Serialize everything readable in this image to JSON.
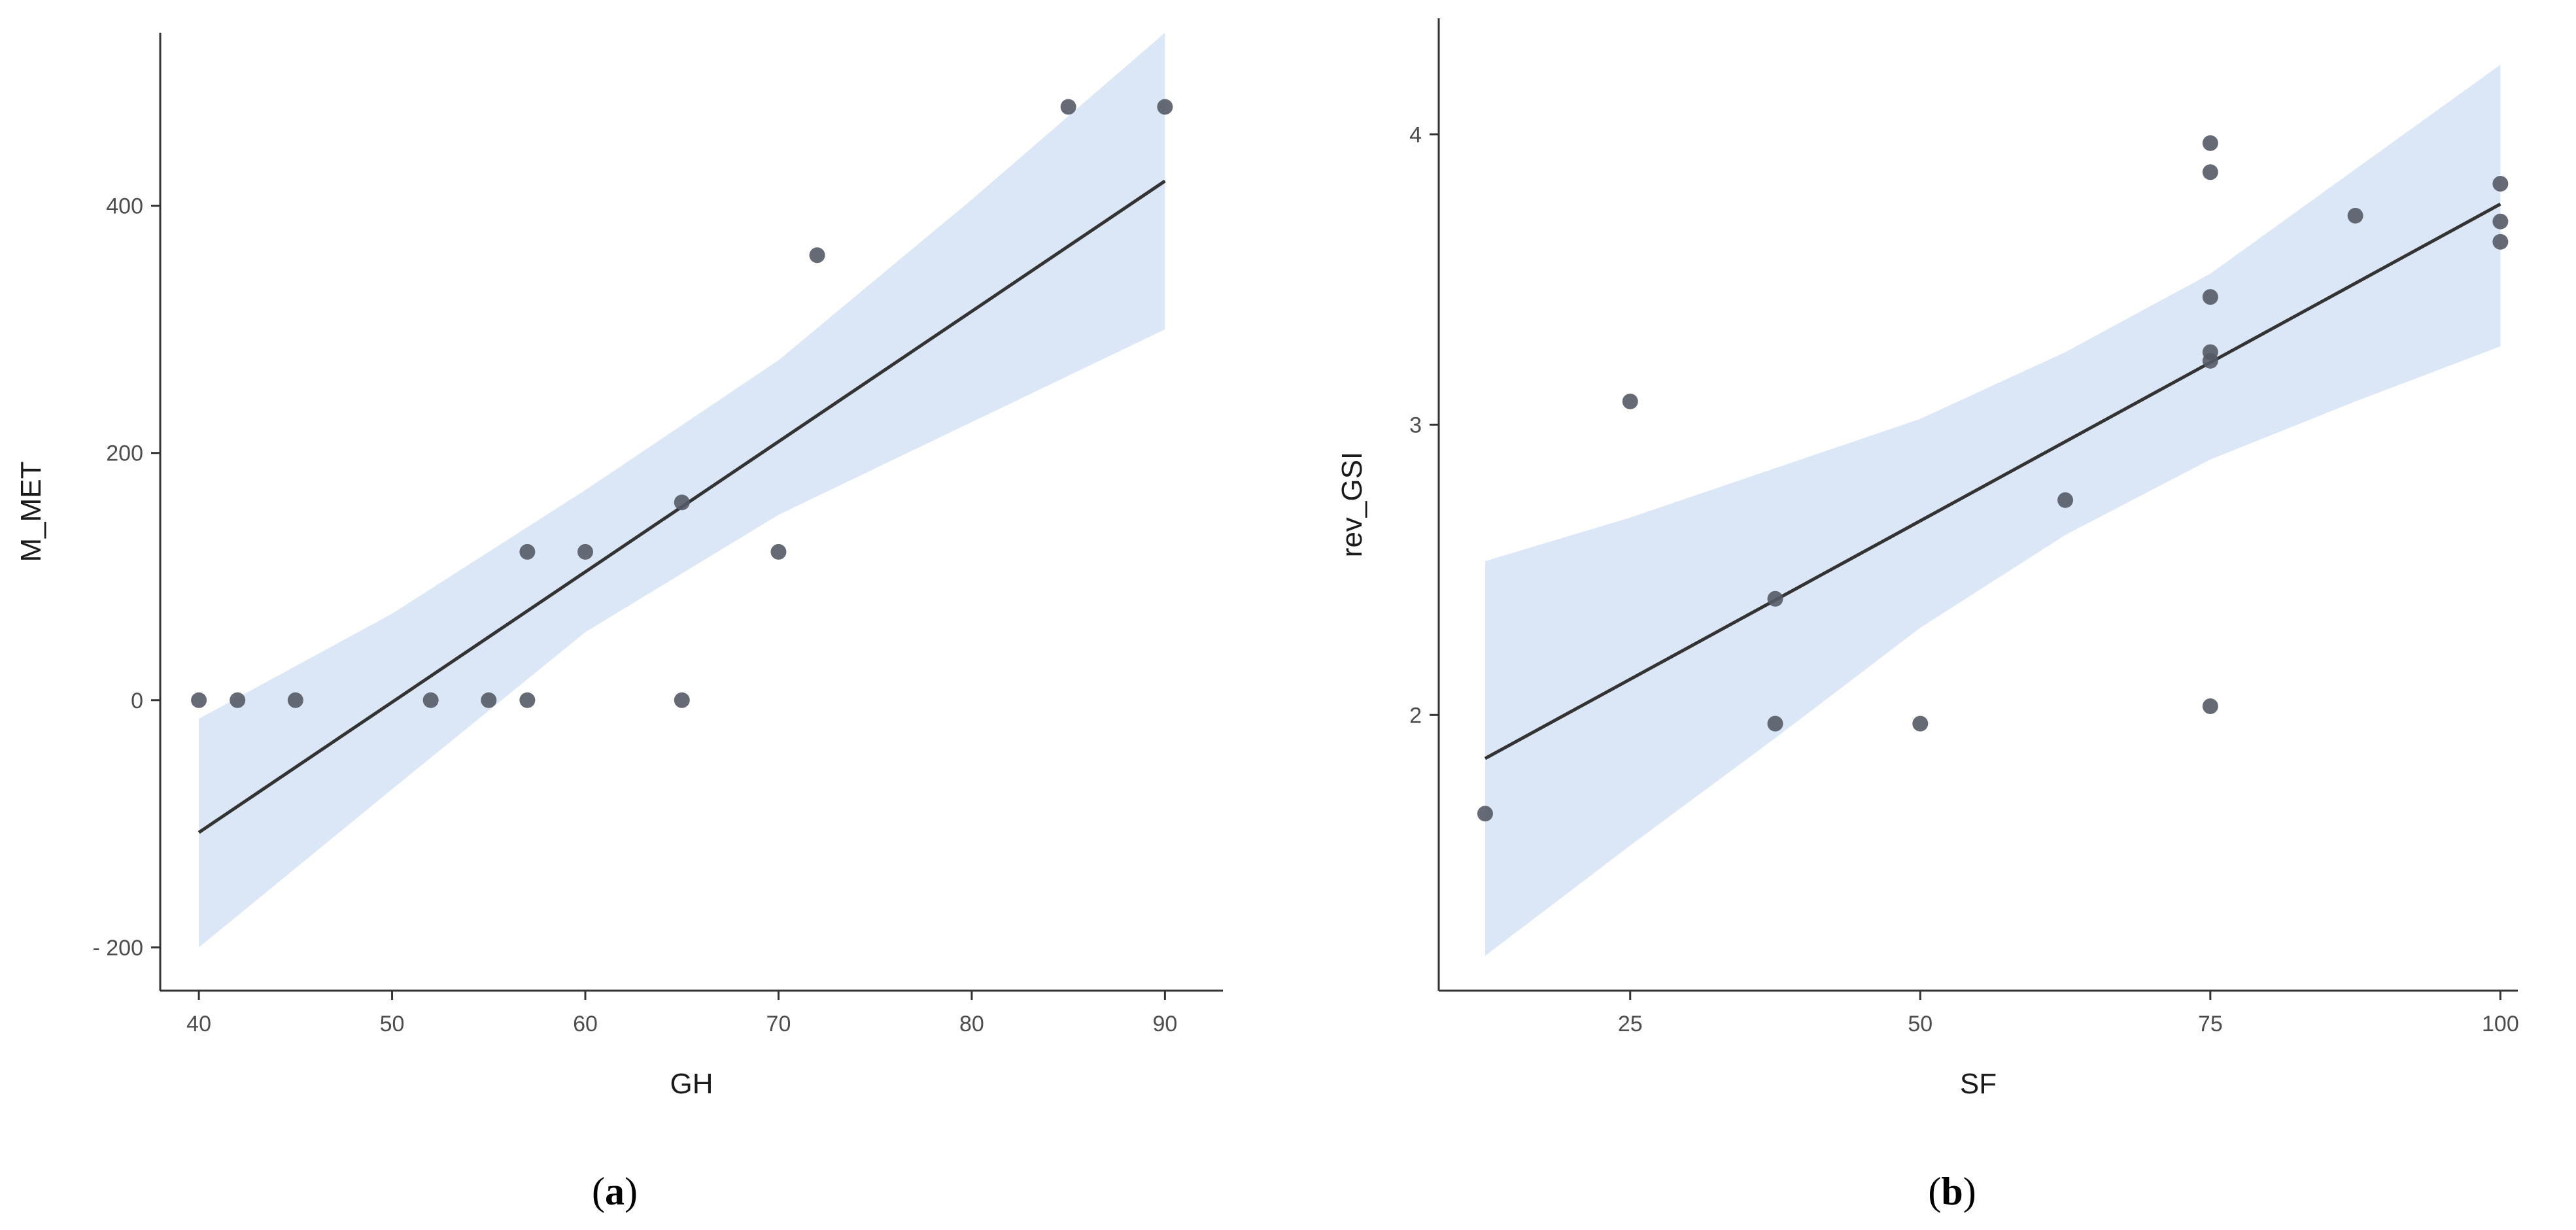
{
  "chart_data": [
    {
      "type": "scatter",
      "panel_label": "(a)",
      "panel_label_letter": "a",
      "xlabel": "GH",
      "ylabel": "M_MET",
      "xlim": [
        38,
        93
      ],
      "ylim": [
        -235,
        540
      ],
      "x_ticks": [
        40,
        50,
        60,
        70,
        80,
        90
      ],
      "x_tick_labels": [
        "40",
        "50",
        "60",
        "70",
        "80",
        "90"
      ],
      "y_ticks": [
        -200,
        0,
        200,
        400
      ],
      "y_tick_labels": [
        "- 200",
        "0",
        "200",
        "400"
      ],
      "points": [
        {
          "x": 40,
          "y": 0
        },
        {
          "x": 42,
          "y": 0
        },
        {
          "x": 45,
          "y": 0
        },
        {
          "x": 52,
          "y": 0
        },
        {
          "x": 55,
          "y": 0
        },
        {
          "x": 57,
          "y": 0
        },
        {
          "x": 57,
          "y": 120
        },
        {
          "x": 60,
          "y": 120
        },
        {
          "x": 65,
          "y": 160
        },
        {
          "x": 65,
          "y": 0
        },
        {
          "x": 70,
          "y": 120
        },
        {
          "x": 72,
          "y": 360
        },
        {
          "x": 85,
          "y": 480
        },
        {
          "x": 90,
          "y": 480
        }
      ],
      "fit": {
        "x": [
          40,
          90
        ],
        "y": [
          -107,
          420
        ]
      },
      "confidence_band": {
        "x": [
          40,
          50,
          60,
          70,
          80,
          90
        ],
        "lower": [
          -200,
          -72,
          55,
          150,
          225,
          300
        ],
        "upper": [
          -15,
          70,
          170,
          275,
          405,
          540
        ]
      },
      "grid": false,
      "legend": "none",
      "colors": {
        "band": "#dbe7f7",
        "line": "#333333",
        "points": "#555a66",
        "axis": "#333333"
      }
    },
    {
      "type": "scatter",
      "panel_label": "(b)",
      "panel_label_letter": "b",
      "xlabel": "SF",
      "ylabel": "rev_GSI",
      "xlim": [
        8.5,
        101.5
      ],
      "ylim": [
        1.05,
        4.4
      ],
      "x_ticks": [
        25,
        50,
        75,
        100
      ],
      "x_tick_labels": [
        "25",
        "50",
        "75",
        "100"
      ],
      "y_ticks": [
        2,
        3,
        4
      ],
      "y_tick_labels": [
        "2",
        "3",
        "4"
      ],
      "points": [
        {
          "x": 12.5,
          "y": 1.66
        },
        {
          "x": 25,
          "y": 3.08
        },
        {
          "x": 37.5,
          "y": 2.4
        },
        {
          "x": 37.5,
          "y": 1.97
        },
        {
          "x": 50,
          "y": 1.97
        },
        {
          "x": 62.5,
          "y": 2.74
        },
        {
          "x": 75,
          "y": 3.97
        },
        {
          "x": 75,
          "y": 3.87
        },
        {
          "x": 75,
          "y": 3.44
        },
        {
          "x": 75,
          "y": 3.25
        },
        {
          "x": 75,
          "y": 3.22
        },
        {
          "x": 75,
          "y": 2.03
        },
        {
          "x": 87.5,
          "y": 3.72
        },
        {
          "x": 100,
          "y": 3.83
        },
        {
          "x": 100,
          "y": 3.7
        },
        {
          "x": 100,
          "y": 3.63
        }
      ],
      "fit": {
        "x": [
          12.5,
          100
        ],
        "y": [
          1.85,
          3.76
        ]
      },
      "confidence_band": {
        "x": [
          12.5,
          25,
          37.5,
          50,
          62.5,
          75,
          87.5,
          100
        ],
        "lower": [
          1.17,
          1.55,
          1.92,
          2.3,
          2.62,
          2.88,
          3.08,
          3.27
        ],
        "upper": [
          2.53,
          2.68,
          2.85,
          3.02,
          3.25,
          3.52,
          3.88,
          4.24
        ]
      },
      "grid": false,
      "legend": "none",
      "colors": {
        "band": "#dbe7f7",
        "line": "#333333",
        "points": "#555a66",
        "axis": "#333333"
      }
    }
  ]
}
